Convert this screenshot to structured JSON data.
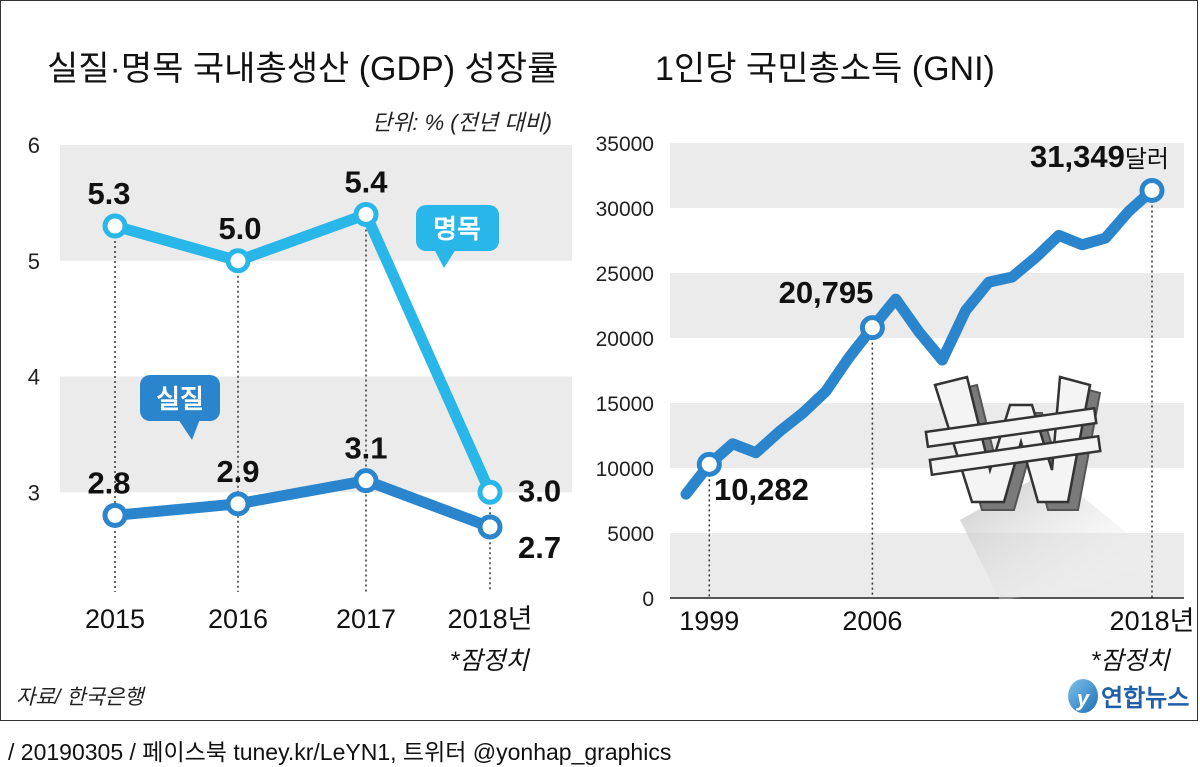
{
  "chart_data": [
    {
      "type": "line",
      "title": "실질·명목 국내총생산 (GDP) 성장률",
      "unit_note": "단위: % (전년 대비)",
      "categories": [
        "2015",
        "2016",
        "2017",
        "2018년"
      ],
      "provisional_note": "*잠정치",
      "yticks": [
        "6",
        "5",
        "4",
        "3"
      ],
      "ylim": [
        2,
        6
      ],
      "series": [
        {
          "name": "명목",
          "values": [
            5.3,
            5.0,
            5.4,
            3.0
          ],
          "labels": [
            "5.3",
            "5.0",
            "5.4",
            "3.0"
          ],
          "color": "#29b6e8"
        },
        {
          "name": "실질",
          "values": [
            2.8,
            2.9,
            3.1,
            2.7
          ],
          "labels": [
            "2.8",
            "2.9",
            "3.1",
            "2.7"
          ],
          "color": "#2a85cc"
        }
      ],
      "grid": "alternating horizontal bands"
    },
    {
      "type": "line",
      "title": "1인당 국민총소득 (GNI)",
      "x_labels": [
        "1999",
        "2006",
        "2018년"
      ],
      "provisional_note": "*잠정치",
      "yticks": [
        "35000",
        "30000",
        "25000",
        "20000",
        "15000",
        "10000",
        "5000",
        "0"
      ],
      "ylim": [
        0,
        35000
      ],
      "xlim": [
        1998,
        2018
      ],
      "series": [
        {
          "color": "#2a85cc",
          "x": [
            1998,
            1999,
            2000,
            2001,
            2002,
            2003,
            2004,
            2005,
            2006,
            2007,
            2008,
            2009,
            2010,
            2011,
            2012,
            2013,
            2014,
            2015,
            2016,
            2017,
            2018
          ],
          "values": [
            7989,
            10282,
            11865,
            11176,
            12789,
            14206,
            15898,
            18507,
            20795,
            22992,
            20463,
            18303,
            22105,
            24302,
            24696,
            26179,
            27892,
            27171,
            27681,
            29745,
            31349
          ]
        }
      ],
      "annotations": [
        {
          "x": 1999,
          "value": 10282,
          "label": "10,282"
        },
        {
          "x": 2006,
          "value": 20795,
          "label": "20,795"
        },
        {
          "x": 2018,
          "value": 31349,
          "label": "31,349달러"
        }
      ],
      "grid": "alternating horizontal bands"
    }
  ],
  "source": "자료/ 한국은행",
  "logo_text": "연합뉴스",
  "footer": "/ 20190305 / 페이스북 tuney.kr/LeYN1, 트위터 @yonhap_graphics"
}
